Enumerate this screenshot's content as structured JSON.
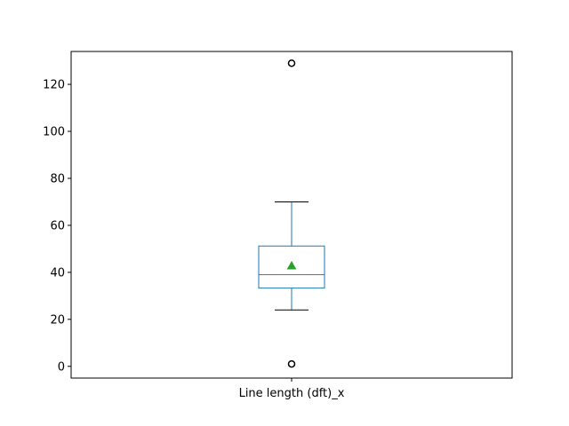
{
  "chart_data": {
    "type": "box",
    "categories": [
      "Line length (dft)_x"
    ],
    "ylim": [
      -5,
      134
    ],
    "yticks": [
      0,
      20,
      40,
      60,
      80,
      100,
      120
    ],
    "boxes": [
      {
        "label": "Line length (dft)_x",
        "whisker_low": 24,
        "q1": 33.3,
        "median": 39,
        "q3": 51.2,
        "whisker_high": 70,
        "mean": 42.8,
        "fliers": [
          1,
          129
        ]
      }
    ],
    "grid": false,
    "colors": {
      "box": "#1f77b4",
      "median": "#2ca02c",
      "mean": "#2ca02c",
      "whisker_cap": "#000000",
      "flier": "#000000"
    }
  }
}
